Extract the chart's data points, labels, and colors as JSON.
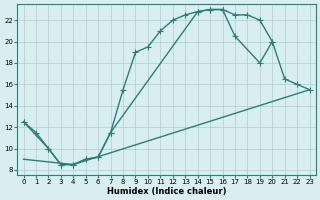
{
  "xlabel": "Humidex (Indice chaleur)",
  "bg_color": "#d8eef1",
  "grid_color": "#aecdd4",
  "line_color": "#2d7d78",
  "xlim": [
    -0.5,
    23.5
  ],
  "ylim": [
    7.5,
    23.5
  ],
  "xticks": [
    0,
    1,
    2,
    3,
    4,
    5,
    6,
    7,
    8,
    9,
    10,
    11,
    12,
    13,
    14,
    15,
    16,
    17,
    18,
    19,
    20,
    21,
    22,
    23
  ],
  "yticks": [
    8,
    10,
    12,
    14,
    16,
    18,
    20,
    22
  ],
  "curve1_x": [
    0,
    1,
    2,
    3,
    4,
    5,
    6,
    7,
    8,
    9,
    10,
    11,
    12,
    13,
    14,
    15,
    16,
    17,
    18,
    19,
    20
  ],
  "curve1_y": [
    12.5,
    11.5,
    10.0,
    8.5,
    8.5,
    9.0,
    9.2,
    11.5,
    15.5,
    19.0,
    19.5,
    21.0,
    22.0,
    22.5,
    22.8,
    23.0,
    23.0,
    22.5,
    22.5,
    22.0,
    20.0
  ],
  "curve2_x": [
    0,
    2,
    3,
    4,
    5,
    6,
    7,
    14,
    15,
    16,
    17,
    19,
    20,
    21,
    22,
    23
  ],
  "curve2_y": [
    12.5,
    10.0,
    8.5,
    8.5,
    9.0,
    9.2,
    11.5,
    22.8,
    23.0,
    23.0,
    20.5,
    18.0,
    20.0,
    16.5,
    16.0,
    15.5
  ],
  "curve3_x": [
    0,
    4,
    23
  ],
  "curve3_y": [
    9.0,
    8.5,
    15.5
  ],
  "linewidth": 1.0,
  "marker_size": 4,
  "axis_fontsize": 6,
  "tick_fontsize": 5
}
